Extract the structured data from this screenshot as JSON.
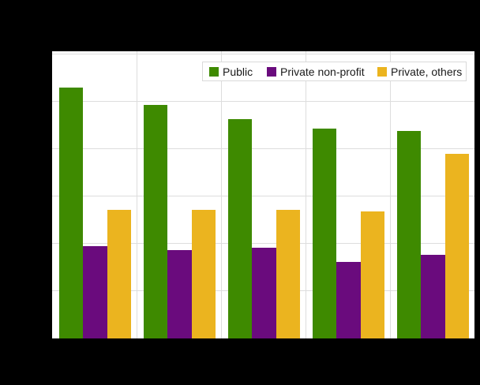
{
  "figure": {
    "background": "#000000",
    "plot_background": "#ffffff",
    "gridline_color": "#dddddd",
    "legend_border_color": "#d9d9d9",
    "text_color": "#1a1a1a"
  },
  "chart_data": {
    "type": "bar",
    "title": "",
    "xlabel": "",
    "ylabel": "",
    "categories": [
      "",
      "",
      "",
      "",
      ""
    ],
    "series": [
      {
        "name": "Public",
        "color": "#3e8a00",
        "values": [
          53.0,
          49.4,
          46.4,
          44.3,
          43.9
        ]
      },
      {
        "name": "Private non-profit",
        "color": "#6a0b7d",
        "values": [
          19.5,
          18.7,
          19.1,
          16.1,
          17.7
        ]
      },
      {
        "name": "Private, others",
        "color": "#ebb41f",
        "values": [
          27.2,
          27.1,
          27.1,
          26.8,
          39.1
        ]
      }
    ],
    "ylim": [
      0,
      60.7
    ],
    "gridline_interval": 10,
    "grid": true,
    "axis_tick_labels_visible": false,
    "legend_position": "top-right"
  }
}
